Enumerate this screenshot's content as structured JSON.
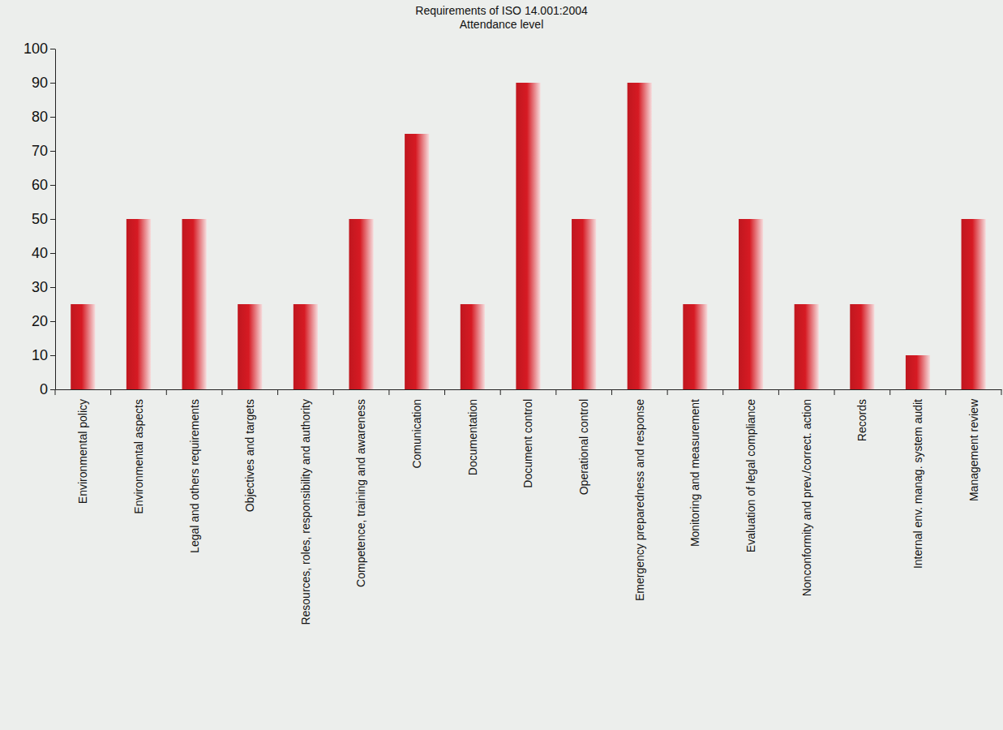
{
  "chart_data": {
    "type": "bar",
    "title": "Requirements of ISO 14.001:2004",
    "subtitle": "Attendance level",
    "categories": [
      "Environmental policy",
      "Environmental aspects",
      "Legal and others requirements",
      "Objectives and targets",
      "Resources, roles, responsibility and authority",
      "Competence, training and awareness",
      "Comunication",
      "Documentation",
      "Document control",
      "Operational control",
      "Emergency preparedness and response",
      "Monitoring and measurement",
      "Evaluation of legal compliance",
      "Nonconformity and prev./correct. action",
      "Records",
      "Internal env. manag. system audit",
      "Management review"
    ],
    "values": [
      25,
      50,
      50,
      25,
      25,
      50,
      75,
      25,
      90,
      50,
      90,
      25,
      50,
      25,
      25,
      10,
      50
    ],
    "color": "#c0171f",
    "ylim": [
      0,
      100
    ],
    "yticks": [
      0,
      10,
      20,
      30,
      40,
      50,
      60,
      70,
      80,
      90,
      100
    ],
    "grid": false
  }
}
